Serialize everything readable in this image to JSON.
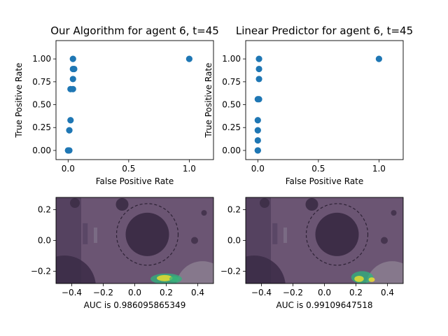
{
  "chart_data": [
    {
      "type": "scatter",
      "title": "Our Algorithm for agent 6, t=45",
      "xlabel": "False Positive Rate",
      "ylabel": "True Positive Rate",
      "xlim": [
        -0.1,
        1.2
      ],
      "ylim": [
        -0.1,
        1.2
      ],
      "xticks": [
        0.0,
        0.5,
        1.0
      ],
      "xtick_labels": [
        "0.0",
        "0.5",
        "1.0"
      ],
      "yticks": [
        0.0,
        0.25,
        0.5,
        0.75,
        1.0
      ],
      "ytick_labels": [
        "0.00",
        "0.25",
        "0.50",
        "0.75",
        "1.00"
      ],
      "color": "#1f77b4",
      "grid": false,
      "points": [
        [
          0.0,
          0.0
        ],
        [
          0.0,
          0.0
        ],
        [
          0.01,
          0.0
        ],
        [
          0.01,
          0.22
        ],
        [
          0.02,
          0.33
        ],
        [
          0.02,
          0.67
        ],
        [
          0.04,
          0.67
        ],
        [
          0.04,
          0.78
        ],
        [
          0.04,
          0.89
        ],
        [
          0.05,
          0.89
        ],
        [
          0.04,
          1.0
        ],
        [
          1.0,
          1.0
        ]
      ]
    },
    {
      "type": "scatter",
      "title": "Linear Predictor for agent 6, t=45",
      "xlabel": "False Positive Rate",
      "ylabel": "True Positive Rate",
      "xlim": [
        -0.1,
        1.2
      ],
      "ylim": [
        -0.1,
        1.2
      ],
      "xticks": [
        0.0,
        0.5,
        1.0
      ],
      "xtick_labels": [
        "0.0",
        "0.5",
        "1.0"
      ],
      "yticks": [
        0.0,
        0.25,
        0.5,
        0.75,
        1.0
      ],
      "ytick_labels": [
        "0.00",
        "0.25",
        "0.50",
        "0.75",
        "1.00"
      ],
      "color": "#1f77b4",
      "grid": false,
      "points": [
        [
          0.0,
          0.0
        ],
        [
          0.0,
          0.0
        ],
        [
          0.0,
          0.11
        ],
        [
          0.0,
          0.22
        ],
        [
          0.0,
          0.33
        ],
        [
          0.0,
          0.56
        ],
        [
          0.01,
          0.56
        ],
        [
          0.01,
          0.78
        ],
        [
          0.01,
          0.89
        ],
        [
          0.01,
          1.0
        ],
        [
          1.0,
          1.0
        ]
      ]
    },
    {
      "type": "heatmap",
      "xlabel": "AUC is 0.986095865349",
      "xlim": [
        -0.5,
        0.5
      ],
      "ylim": [
        -0.28,
        0.28
      ],
      "xticks": [
        -0.4,
        -0.2,
        0.0,
        0.2,
        0.4
      ],
      "xtick_labels": [
        "−0.4",
        "−0.2",
        "0.0",
        "0.2",
        "0.4"
      ],
      "yticks": [
        -0.2,
        0.0,
        0.2
      ],
      "ytick_labels": [
        "−0.2",
        "0.0",
        "0.2"
      ],
      "hotspots": [
        {
          "x": 0.2,
          "y": -0.25,
          "rx": 0.1,
          "ry": 0.035,
          "color": "#2fb47c"
        },
        {
          "x": 0.19,
          "y": -0.245,
          "rx": 0.05,
          "ry": 0.02,
          "color": "#fde725"
        },
        {
          "x": 0.25,
          "y": -0.25,
          "rx": 0.03,
          "ry": 0.018,
          "color": "#35b779"
        }
      ]
    },
    {
      "type": "heatmap",
      "xlabel": "AUC is 0.99109647518",
      "xlim": [
        -0.5,
        0.5
      ],
      "ylim": [
        -0.28,
        0.28
      ],
      "xticks": [
        -0.4,
        -0.2,
        0.0,
        0.2,
        0.4
      ],
      "xtick_labels": [
        "−0.4",
        "−0.2",
        "0.0",
        "0.2",
        "0.4"
      ],
      "yticks": [
        -0.2,
        0.0,
        0.2
      ],
      "ytick_labels": [
        "−0.2",
        "0.0",
        "0.2"
      ],
      "hotspots": [
        {
          "x": 0.24,
          "y": -0.24,
          "rx": 0.07,
          "ry": 0.04,
          "color": "#2fb47c"
        },
        {
          "x": 0.22,
          "y": -0.25,
          "rx": 0.03,
          "ry": 0.02,
          "color": "#fde725"
        },
        {
          "x": 0.3,
          "y": -0.255,
          "rx": 0.02,
          "ry": 0.015,
          "color": "#fde725"
        }
      ]
    }
  ]
}
